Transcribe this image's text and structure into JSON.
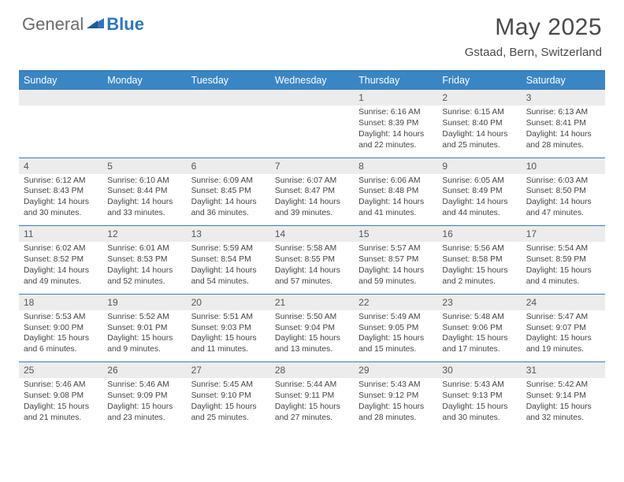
{
  "logo": {
    "text1": "General",
    "text2": "Blue"
  },
  "title": "May 2025",
  "location": "Gstaad, Bern, Switzerland",
  "colors": {
    "header_bar": "#3a86c4",
    "rule": "#3a7fb8",
    "daynum_bg": "#ececec",
    "logo_gray": "#6b6b6b",
    "logo_blue": "#2f77b9"
  },
  "day_names": [
    "Sunday",
    "Monday",
    "Tuesday",
    "Wednesday",
    "Thursday",
    "Friday",
    "Saturday"
  ],
  "weeks": [
    [
      null,
      null,
      null,
      null,
      {
        "n": "1",
        "sr": "Sunrise: 6:16 AM",
        "ss": "Sunset: 8:39 PM",
        "d1": "Daylight: 14 hours",
        "d2": "and 22 minutes."
      },
      {
        "n": "2",
        "sr": "Sunrise: 6:15 AM",
        "ss": "Sunset: 8:40 PM",
        "d1": "Daylight: 14 hours",
        "d2": "and 25 minutes."
      },
      {
        "n": "3",
        "sr": "Sunrise: 6:13 AM",
        "ss": "Sunset: 8:41 PM",
        "d1": "Daylight: 14 hours",
        "d2": "and 28 minutes."
      }
    ],
    [
      {
        "n": "4",
        "sr": "Sunrise: 6:12 AM",
        "ss": "Sunset: 8:43 PM",
        "d1": "Daylight: 14 hours",
        "d2": "and 30 minutes."
      },
      {
        "n": "5",
        "sr": "Sunrise: 6:10 AM",
        "ss": "Sunset: 8:44 PM",
        "d1": "Daylight: 14 hours",
        "d2": "and 33 minutes."
      },
      {
        "n": "6",
        "sr": "Sunrise: 6:09 AM",
        "ss": "Sunset: 8:45 PM",
        "d1": "Daylight: 14 hours",
        "d2": "and 36 minutes."
      },
      {
        "n": "7",
        "sr": "Sunrise: 6:07 AM",
        "ss": "Sunset: 8:47 PM",
        "d1": "Daylight: 14 hours",
        "d2": "and 39 minutes."
      },
      {
        "n": "8",
        "sr": "Sunrise: 6:06 AM",
        "ss": "Sunset: 8:48 PM",
        "d1": "Daylight: 14 hours",
        "d2": "and 41 minutes."
      },
      {
        "n": "9",
        "sr": "Sunrise: 6:05 AM",
        "ss": "Sunset: 8:49 PM",
        "d1": "Daylight: 14 hours",
        "d2": "and 44 minutes."
      },
      {
        "n": "10",
        "sr": "Sunrise: 6:03 AM",
        "ss": "Sunset: 8:50 PM",
        "d1": "Daylight: 14 hours",
        "d2": "and 47 minutes."
      }
    ],
    [
      {
        "n": "11",
        "sr": "Sunrise: 6:02 AM",
        "ss": "Sunset: 8:52 PM",
        "d1": "Daylight: 14 hours",
        "d2": "and 49 minutes."
      },
      {
        "n": "12",
        "sr": "Sunrise: 6:01 AM",
        "ss": "Sunset: 8:53 PM",
        "d1": "Daylight: 14 hours",
        "d2": "and 52 minutes."
      },
      {
        "n": "13",
        "sr": "Sunrise: 5:59 AM",
        "ss": "Sunset: 8:54 PM",
        "d1": "Daylight: 14 hours",
        "d2": "and 54 minutes."
      },
      {
        "n": "14",
        "sr": "Sunrise: 5:58 AM",
        "ss": "Sunset: 8:55 PM",
        "d1": "Daylight: 14 hours",
        "d2": "and 57 minutes."
      },
      {
        "n": "15",
        "sr": "Sunrise: 5:57 AM",
        "ss": "Sunset: 8:57 PM",
        "d1": "Daylight: 14 hours",
        "d2": "and 59 minutes."
      },
      {
        "n": "16",
        "sr": "Sunrise: 5:56 AM",
        "ss": "Sunset: 8:58 PM",
        "d1": "Daylight: 15 hours",
        "d2": "and 2 minutes."
      },
      {
        "n": "17",
        "sr": "Sunrise: 5:54 AM",
        "ss": "Sunset: 8:59 PM",
        "d1": "Daylight: 15 hours",
        "d2": "and 4 minutes."
      }
    ],
    [
      {
        "n": "18",
        "sr": "Sunrise: 5:53 AM",
        "ss": "Sunset: 9:00 PM",
        "d1": "Daylight: 15 hours",
        "d2": "and 6 minutes."
      },
      {
        "n": "19",
        "sr": "Sunrise: 5:52 AM",
        "ss": "Sunset: 9:01 PM",
        "d1": "Daylight: 15 hours",
        "d2": "and 9 minutes."
      },
      {
        "n": "20",
        "sr": "Sunrise: 5:51 AM",
        "ss": "Sunset: 9:03 PM",
        "d1": "Daylight: 15 hours",
        "d2": "and 11 minutes."
      },
      {
        "n": "21",
        "sr": "Sunrise: 5:50 AM",
        "ss": "Sunset: 9:04 PM",
        "d1": "Daylight: 15 hours",
        "d2": "and 13 minutes."
      },
      {
        "n": "22",
        "sr": "Sunrise: 5:49 AM",
        "ss": "Sunset: 9:05 PM",
        "d1": "Daylight: 15 hours",
        "d2": "and 15 minutes."
      },
      {
        "n": "23",
        "sr": "Sunrise: 5:48 AM",
        "ss": "Sunset: 9:06 PM",
        "d1": "Daylight: 15 hours",
        "d2": "and 17 minutes."
      },
      {
        "n": "24",
        "sr": "Sunrise: 5:47 AM",
        "ss": "Sunset: 9:07 PM",
        "d1": "Daylight: 15 hours",
        "d2": "and 19 minutes."
      }
    ],
    [
      {
        "n": "25",
        "sr": "Sunrise: 5:46 AM",
        "ss": "Sunset: 9:08 PM",
        "d1": "Daylight: 15 hours",
        "d2": "and 21 minutes."
      },
      {
        "n": "26",
        "sr": "Sunrise: 5:46 AM",
        "ss": "Sunset: 9:09 PM",
        "d1": "Daylight: 15 hours",
        "d2": "and 23 minutes."
      },
      {
        "n": "27",
        "sr": "Sunrise: 5:45 AM",
        "ss": "Sunset: 9:10 PM",
        "d1": "Daylight: 15 hours",
        "d2": "and 25 minutes."
      },
      {
        "n": "28",
        "sr": "Sunrise: 5:44 AM",
        "ss": "Sunset: 9:11 PM",
        "d1": "Daylight: 15 hours",
        "d2": "and 27 minutes."
      },
      {
        "n": "29",
        "sr": "Sunrise: 5:43 AM",
        "ss": "Sunset: 9:12 PM",
        "d1": "Daylight: 15 hours",
        "d2": "and 28 minutes."
      },
      {
        "n": "30",
        "sr": "Sunrise: 5:43 AM",
        "ss": "Sunset: 9:13 PM",
        "d1": "Daylight: 15 hours",
        "d2": "and 30 minutes."
      },
      {
        "n": "31",
        "sr": "Sunrise: 5:42 AM",
        "ss": "Sunset: 9:14 PM",
        "d1": "Daylight: 15 hours",
        "d2": "and 32 minutes."
      }
    ]
  ]
}
